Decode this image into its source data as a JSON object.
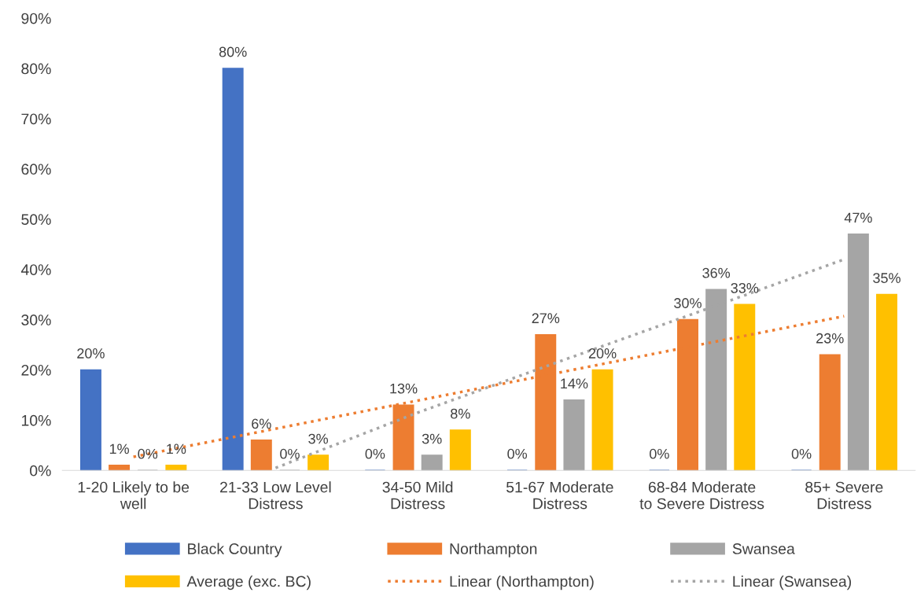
{
  "chart_data": {
    "type": "bar",
    "categories": [
      "1-20 Likely to be\nwell",
      "21-33 Low Level\nDistress",
      "34-50 Mild\nDistress",
      "51-67 Moderate\nDistress",
      "68-84 Moderate\nto Severe Distress",
      "85+ Severe\nDistress"
    ],
    "series": [
      {
        "name": "Black Country",
        "color": "#4472c4",
        "values": [
          20,
          80,
          0,
          0,
          0,
          0
        ],
        "value_labels": [
          "20%",
          "80%",
          "0%",
          "0%",
          "0%",
          "0%"
        ]
      },
      {
        "name": "Northampton",
        "color": "#ed7d31",
        "values": [
          1,
          6,
          13,
          27,
          30,
          23
        ],
        "value_labels": [
          "1%",
          "6%",
          "13%",
          "27%",
          "30%",
          "23%"
        ]
      },
      {
        "name": "Swansea",
        "color": "#a5a5a5",
        "values": [
          0,
          0,
          3,
          14,
          36,
          47
        ],
        "value_labels": [
          "0%",
          "0%",
          "3%",
          "14%",
          "36%",
          "47%"
        ]
      },
      {
        "name": "Average (exc. BC)",
        "color": "#ffc000",
        "values": [
          1,
          3,
          8,
          20,
          33,
          35
        ],
        "value_labels": [
          "1%",
          "3%",
          "8%",
          "20%",
          "33%",
          "35%"
        ]
      },
      {
        "name": "Linear (Northampton)",
        "type": "line",
        "line_style": "dotted",
        "color": "#ed7d31",
        "values": [
          2.7,
          8.3,
          13.9,
          19.5,
          25.1,
          30.7
        ]
      },
      {
        "name": "Linear (Swansea)",
        "type": "line",
        "line_style": "dotted",
        "color": "#a5a5a5",
        "values": [
          null,
          0.5,
          11.5,
          21.7,
          31.8,
          42
        ]
      }
    ],
    "ylim": [
      0,
      90
    ],
    "yticks": [
      {
        "value": 0,
        "label": "0%"
      },
      {
        "value": 10,
        "label": "10%"
      },
      {
        "value": 20,
        "label": "20%"
      },
      {
        "value": 30,
        "label": "30%"
      },
      {
        "value": 40,
        "label": "40%"
      },
      {
        "value": 50,
        "label": "50%"
      },
      {
        "value": 60,
        "label": "60%"
      },
      {
        "value": 70,
        "label": "70%"
      },
      {
        "value": 80,
        "label": "80%"
      },
      {
        "value": 90,
        "label": "90%"
      }
    ],
    "grid": false,
    "legend": "bottom"
  }
}
